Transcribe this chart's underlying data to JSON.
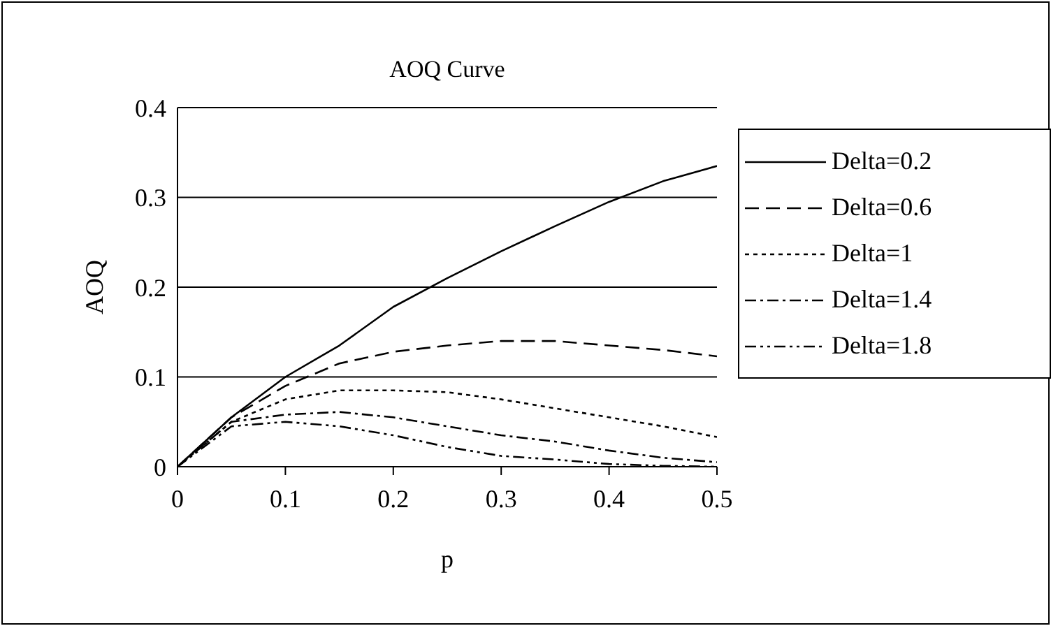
{
  "chart_data": {
    "type": "line",
    "title": "AOQ Curve",
    "xlabel": "p",
    "ylabel": "AOQ",
    "x": [
      0,
      0.05,
      0.1,
      0.15,
      0.2,
      0.25,
      0.3,
      0.35,
      0.4,
      0.45,
      0.5
    ],
    "series": [
      {
        "name": "Delta=0.2",
        "color": "#000000",
        "line_style": "solid",
        "values": [
          0,
          0.055,
          0.1,
          0.135,
          0.178,
          0.21,
          0.24,
          0.268,
          0.295,
          0.318,
          0.335
        ]
      },
      {
        "name": "Delta=0.6",
        "color": "#000000",
        "line_style": "dashed",
        "values": [
          0,
          0.055,
          0.09,
          0.115,
          0.128,
          0.135,
          0.14,
          0.14,
          0.135,
          0.13,
          0.123
        ]
      },
      {
        "name": "Delta=1",
        "color": "#000000",
        "line_style": "dotted",
        "values": [
          0,
          0.05,
          0.075,
          0.085,
          0.085,
          0.083,
          0.075,
          0.065,
          0.055,
          0.045,
          0.033
        ]
      },
      {
        "name": "Delta=1.4",
        "color": "#000000",
        "line_style": "dashdot",
        "values": [
          0,
          0.05,
          0.058,
          0.061,
          0.055,
          0.045,
          0.035,
          0.028,
          0.018,
          0.01,
          0.005
        ]
      },
      {
        "name": "Delta=1.8",
        "color": "#000000",
        "line_style": "dashdotdot",
        "values": [
          0,
          0.045,
          0.05,
          0.045,
          0.035,
          0.022,
          0.012,
          0.008,
          0.003,
          0.001,
          0
        ]
      }
    ],
    "xlim": [
      0,
      0.5
    ],
    "xticks": [
      0,
      0.1,
      0.2,
      0.3,
      0.4,
      0.5
    ],
    "ylim": [
      0,
      0.4
    ],
    "yticks": [
      0,
      0.1,
      0.2,
      0.3,
      0.4
    ],
    "grid": "y",
    "legend": "right",
    "marker": "none"
  }
}
